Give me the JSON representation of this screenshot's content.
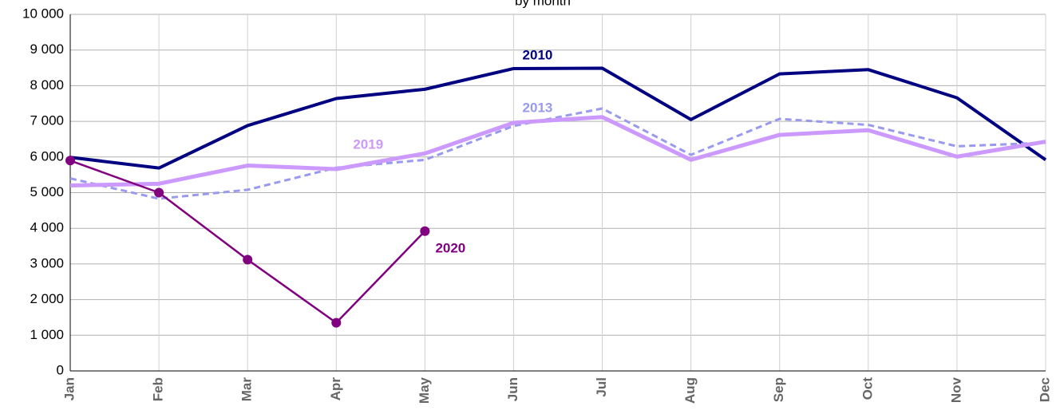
{
  "chart_data": {
    "type": "line",
    "subtitle": "by month",
    "categories": [
      "Jan",
      "Feb",
      "Mar",
      "Apr",
      "May",
      "Jun",
      "Jul",
      "Aug",
      "Sep",
      "Oct",
      "Nov",
      "Dec"
    ],
    "series": [
      {
        "name": "2010",
        "color": "#000080",
        "width": 4,
        "dashed": false,
        "markers": false,
        "values": [
          5990,
          5690,
          6880,
          7640,
          7900,
          8480,
          8490,
          7050,
          8330,
          8450,
          7660,
          5920
        ]
      },
      {
        "name": "2013",
        "color": "#9999ee",
        "width": 3,
        "dashed": true,
        "markers": false,
        "values": [
          5400,
          4830,
          5080,
          5700,
          5920,
          6870,
          7360,
          6060,
          7070,
          6900,
          6300,
          6400
        ]
      },
      {
        "name": "2019",
        "color": "#cc99ff",
        "width": 5,
        "dashed": false,
        "markers": false,
        "values": [
          5200,
          5250,
          5760,
          5660,
          6100,
          6960,
          7120,
          5920,
          6620,
          6750,
          6010,
          6430
        ]
      },
      {
        "name": "2020",
        "color": "#800080",
        "width": 2.5,
        "dashed": false,
        "markers": true,
        "values": [
          5900,
          5000,
          3120,
          1350,
          3920,
          null,
          null,
          null,
          null,
          null,
          null,
          null
        ]
      }
    ],
    "ylim": [
      0,
      10000
    ],
    "yticks": [
      0,
      {
        "value": 1000,
        "label": "1 000"
      },
      {
        "value": 2000,
        "label": "2 000"
      },
      {
        "value": 3000,
        "label": "3 000"
      },
      {
        "value": 4000,
        "label": "4 000"
      },
      {
        "value": 5000,
        "label": "5 000"
      },
      {
        "value": 6000,
        "label": "6 000"
      },
      {
        "value": 7000,
        "label": "7 000"
      },
      {
        "value": 8000,
        "label": "8 000"
      },
      {
        "value": 9000,
        "label": "9 000"
      },
      {
        "value": 10000,
        "label": "10 000"
      }
    ],
    "grid": true
  }
}
